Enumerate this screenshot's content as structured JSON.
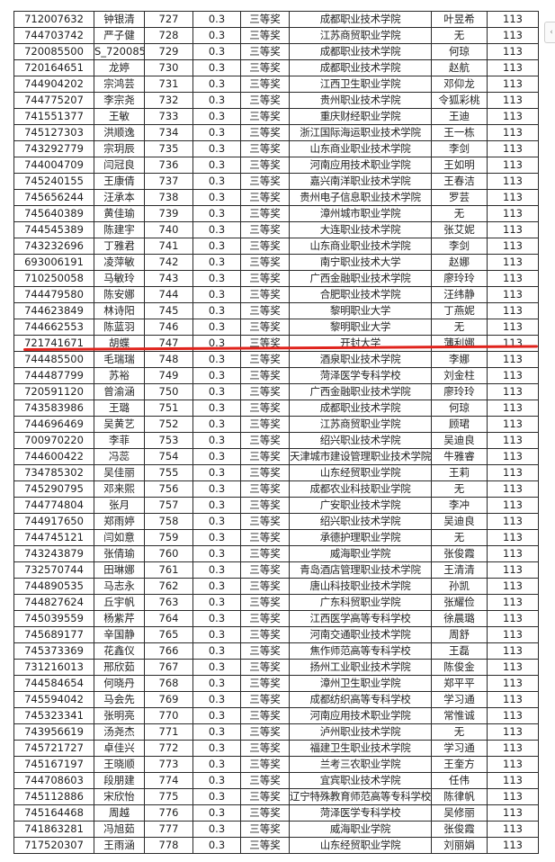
{
  "table": {
    "rows": [
      [
        "712007632",
        "钟银清",
        "727",
        "0.3",
        "三等奖",
        "成都职业技术学院",
        "叶昱希",
        "113"
      ],
      [
        "744703742",
        "严子健",
        "728",
        "0.3",
        "三等奖",
        "江苏商贸职业学院",
        "无",
        "113"
      ],
      [
        "720085500",
        "S_720085",
        "729",
        "0.3",
        "三等奖",
        "成都职业技术学院",
        "何琼",
        "113"
      ],
      [
        "720164651",
        "龙婷",
        "730",
        "0.3",
        "三等奖",
        "成都职业技术学院",
        "赵航",
        "113"
      ],
      [
        "744904202",
        "宗鸿芸",
        "731",
        "0.3",
        "三等奖",
        "江西卫生职业学院",
        "邓仰龙",
        "113"
      ],
      [
        "744775207",
        "李宗尧",
        "732",
        "0.3",
        "三等奖",
        "贵州职业技术学院",
        "令狐彩桃",
        "113"
      ],
      [
        "741551377",
        "王敏",
        "733",
        "0.3",
        "三等奖",
        "重庆财经职业学院",
        "王迪",
        "113"
      ],
      [
        "745127303",
        "洪顺逸",
        "734",
        "0.3",
        "三等奖",
        "浙江国际海运职业技术学院",
        "王一栋",
        "113"
      ],
      [
        "743292779",
        "宗玥辰",
        "735",
        "0.3",
        "三等奖",
        "山东商业职业技术学院",
        "李剑",
        "113"
      ],
      [
        "744004709",
        "闫冠良",
        "736",
        "0.3",
        "三等奖",
        "河南应用技术职业学院",
        "王如明",
        "113"
      ],
      [
        "745240155",
        "王康倩",
        "737",
        "0.3",
        "三等奖",
        "嘉兴南洋职业技术学院",
        "王春洁",
        "113"
      ],
      [
        "745656244",
        "汪承本",
        "738",
        "0.3",
        "三等奖",
        "贵州电子信息职业技术学院",
        "罗芸",
        "113"
      ],
      [
        "745640389",
        "黄佳瑜",
        "739",
        "0.3",
        "三等奖",
        "漳州城市职业学院",
        "无",
        "113"
      ],
      [
        "744545389",
        "陈建宇",
        "740",
        "0.3",
        "三等奖",
        "大连职业技术学院",
        "张艾妮",
        "113"
      ],
      [
        "743232696",
        "丁雅君",
        "741",
        "0.3",
        "三等奖",
        "山东商业职业技术学院",
        "李剑",
        "113"
      ],
      [
        "693006191",
        "凌萍敏",
        "742",
        "0.3",
        "三等奖",
        "南宁职业技术大学",
        "赵娜",
        "113"
      ],
      [
        "710250058",
        "马敏玲",
        "743",
        "0.3",
        "三等奖",
        "广西金融职业技术学院",
        "廖玲玲",
        "113"
      ],
      [
        "744479580",
        "陈安娜",
        "744",
        "0.3",
        "三等奖",
        "合肥职业技术学院",
        "汪纬静",
        "113"
      ],
      [
        "744623849",
        "林诗阳",
        "745",
        "0.3",
        "三等奖",
        "黎明职业大学",
        "丁燕妮",
        "113"
      ],
      [
        "744662553",
        "陈蓝羽",
        "746",
        "0.3",
        "三等奖",
        "黎明职业大学",
        "无",
        "113"
      ],
      [
        "721741671",
        "胡蝶",
        "747",
        "0.3",
        "三等奖",
        "开封大学",
        "薄利娜",
        "113"
      ],
      [
        "744485500",
        "毛瑞瑞",
        "748",
        "0.3",
        "三等奖",
        "酒泉职业技术学院",
        "李娜",
        "113"
      ],
      [
        "744487799",
        "苏裕",
        "749",
        "0.3",
        "三等奖",
        "菏泽医学专科学校",
        "刘金柱",
        "113"
      ],
      [
        "720591120",
        "曾渝涵",
        "750",
        "0.3",
        "三等奖",
        "广西金融职业技术学院",
        "廖玲玲",
        "113"
      ],
      [
        "743583986",
        "王璐",
        "751",
        "0.3",
        "三等奖",
        "成都职业技术学院",
        "何琼",
        "113"
      ],
      [
        "744696469",
        "吴黄艺",
        "752",
        "0.3",
        "三等奖",
        "江苏商贸职业学院",
        "顾珺",
        "113"
      ],
      [
        "700970220",
        "李菲",
        "753",
        "0.3",
        "三等奖",
        "绍兴职业技术学院",
        "吴迪良",
        "113"
      ],
      [
        "744600422",
        "冯蕊",
        "754",
        "0.3",
        "三等奖",
        "天津城市建设管理职业技术学院",
        "牛雅睿",
        "113"
      ],
      [
        "734785302",
        "吴佳丽",
        "755",
        "0.3",
        "三等奖",
        "山东经贸职业学院",
        "王莉",
        "113"
      ],
      [
        "745290795",
        "邓来熙",
        "756",
        "0.3",
        "三等奖",
        "成都农业科技职业学院",
        "无",
        "113"
      ],
      [
        "744774804",
        "张月",
        "757",
        "0.3",
        "三等奖",
        "广安职业技术学院",
        "李冲",
        "113"
      ],
      [
        "744917650",
        "郑雨婷",
        "758",
        "0.3",
        "三等奖",
        "绍兴职业技术学院",
        "吴迪良",
        "113"
      ],
      [
        "744745121",
        "闫如意",
        "759",
        "0.3",
        "三等奖",
        "承德护理职业学院",
        "无",
        "113"
      ],
      [
        "743243879",
        "张倩瑜",
        "760",
        "0.3",
        "三等奖",
        "威海职业学院",
        "张俊霞",
        "113"
      ],
      [
        "732570744",
        "田琳娜",
        "761",
        "0.3",
        "三等奖",
        "青岛酒店管理职业技术学院",
        "王清清",
        "113"
      ],
      [
        "744890535",
        "马志永",
        "762",
        "0.3",
        "三等奖",
        "唐山科技职业技术学院",
        "孙凯",
        "113"
      ],
      [
        "744827624",
        "丘宇帆",
        "763",
        "0.3",
        "三等奖",
        "广东科贸职业学院",
        "张耀俭",
        "113"
      ],
      [
        "745039559",
        "杨紫芹",
        "764",
        "0.3",
        "三等奖",
        "江西医学高等专科学校",
        "徐晨璐",
        "113"
      ],
      [
        "745689177",
        "辛国静",
        "765",
        "0.3",
        "三等奖",
        "河南交通职业技术学院",
        "周舒",
        "113"
      ],
      [
        "745373369",
        "花鑫仪",
        "766",
        "0.3",
        "三等奖",
        "焦作师范高等专科学校",
        "王磊",
        "113"
      ],
      [
        "731216013",
        "邢欣茹",
        "767",
        "0.3",
        "三等奖",
        "扬州工业职业技术学院",
        "陈俊金",
        "113"
      ],
      [
        "744584654",
        "何晓丹",
        "768",
        "0.3",
        "三等奖",
        "漳州卫生职业学院",
        "郑平平",
        "113"
      ],
      [
        "745594042",
        "马会先",
        "769",
        "0.3",
        "三等奖",
        "成都纺织高等专科学校",
        "学习通",
        "113"
      ],
      [
        "745323341",
        "张明亮",
        "770",
        "0.3",
        "三等奖",
        "河南应用技术职业学院",
        "常惟诚",
        "113"
      ],
      [
        "743956619",
        "汤尧杰",
        "771",
        "0.3",
        "三等奖",
        "泸州职业技术学院",
        "无",
        "113"
      ],
      [
        "745721727",
        "卓佳兴",
        "772",
        "0.3",
        "三等奖",
        "福建卫生职业技术学院",
        "学习通",
        "113"
      ],
      [
        "745167197",
        "王晓顺",
        "773",
        "0.3",
        "三等奖",
        "兰考三农职业学院",
        "王奎方",
        "113"
      ],
      [
        "744708603",
        "段朋建",
        "774",
        "0.3",
        "三等奖",
        "宜宾职业技术学院",
        "任伟",
        "113"
      ],
      [
        "745112886",
        "宋欣怡",
        "775",
        "0.3",
        "三等奖",
        "辽宁特殊教育师范高等专科学校",
        "陈律帆",
        "113"
      ],
      [
        "745164468",
        "周越",
        "776",
        "0.3",
        "三等奖",
        "菏泽医学专科学校",
        "吴修丽",
        "113"
      ],
      [
        "741863281",
        "冯旭茹",
        "777",
        "0.3",
        "三等奖",
        "威海职业学院",
        "张俊霞",
        "113"
      ],
      [
        "717520307",
        "王雨涵",
        "778",
        "0.3",
        "三等奖",
        "山东经贸职业学院",
        "刘丽娟",
        "113"
      ]
    ]
  },
  "annotation": {
    "highlight_color": "#e0231c"
  },
  "side_widget": {
    "icon": "collapse-panel-icon"
  }
}
